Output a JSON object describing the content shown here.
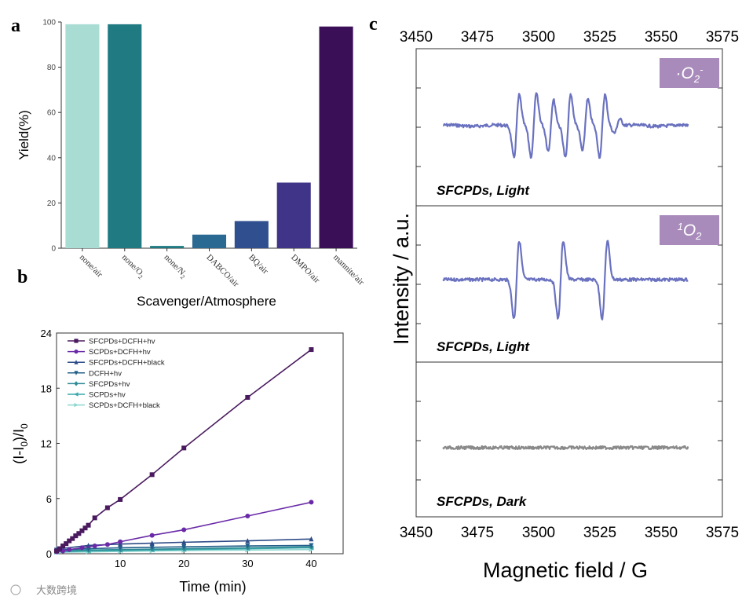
{
  "watermark": "大数跨境",
  "panels": {
    "a": "a",
    "b": "b",
    "c": "c"
  },
  "chart_data": [
    {
      "id": "a",
      "type": "bar",
      "title": "",
      "xlabel": "Scavenger/Atmosphere",
      "ylabel": "Yield(%)",
      "ylim": [
        0,
        100
      ],
      "yticks": [
        0,
        20,
        40,
        60,
        80,
        100
      ],
      "categories": [
        "none/air",
        "none/O2",
        "none/N2",
        "DABCO/air",
        "BQ/air",
        "DMPO/air",
        "mannite/air"
      ],
      "category_labels": [
        {
          "main": "none/air",
          "sub": ""
        },
        {
          "main": "none/O",
          "sub": "2"
        },
        {
          "main": "none/N",
          "sub": "2"
        },
        {
          "main": "DABCO/air",
          "sub": ""
        },
        {
          "main": "BQ/air",
          "sub": ""
        },
        {
          "main": "DMPO/air",
          "sub": ""
        },
        {
          "main": "mannite/air",
          "sub": ""
        }
      ],
      "values": [
        99,
        99,
        1,
        6,
        12,
        29,
        98
      ],
      "colors": [
        "#a9dcd3",
        "#1f7a82",
        "#1f7a82",
        "#2a6a92",
        "#2f4f8e",
        "#3f3488",
        "#3a0f58"
      ]
    },
    {
      "id": "b",
      "type": "line",
      "xlabel": "Time (min)",
      "ylabel_main": "(I-I",
      "ylabel_sub": "0",
      "ylabel_mid": ")/I",
      "ylabel_sub2": "0",
      "xlim": [
        0,
        45
      ],
      "ylim": [
        0,
        24
      ],
      "xticks": [
        10,
        20,
        30,
        40
      ],
      "yticks": [
        0,
        6,
        12,
        18,
        24
      ],
      "legend_position": "top-left",
      "series": [
        {
          "name": "SFCPDs+DCFH+hv",
          "color": "#4a1a5e",
          "marker": "square",
          "x": [
            0,
            0.5,
            1,
            1.5,
            2,
            2.5,
            3,
            3.5,
            4,
            4.5,
            5,
            6,
            8,
            10,
            15,
            20,
            30,
            40
          ],
          "y": [
            0.3,
            0.55,
            0.85,
            1.1,
            1.4,
            1.65,
            1.95,
            2.2,
            2.5,
            2.8,
            3.1,
            3.9,
            5.0,
            5.9,
            8.6,
            11.5,
            17.0,
            22.2
          ]
        },
        {
          "name": "SCPDs+DCFH+hv",
          "color": "#6a2aa8",
          "marker": "circle",
          "x": [
            0,
            1,
            2,
            4,
            6,
            8,
            10,
            15,
            20,
            30,
            40
          ],
          "y": [
            0.2,
            0.3,
            0.45,
            0.65,
            0.85,
            1.0,
            1.3,
            2.0,
            2.6,
            4.1,
            5.6
          ]
        },
        {
          "name": "SFCPDs+DCFH+black",
          "color": "#2d4c87",
          "marker": "triangle",
          "x": [
            0,
            5,
            10,
            15,
            20,
            30,
            40
          ],
          "y": [
            0.5,
            0.9,
            1.05,
            1.15,
            1.25,
            1.4,
            1.6
          ]
        },
        {
          "name": "DCFH+hv",
          "color": "#24608a",
          "marker": "triangle-down",
          "x": [
            0,
            5,
            10,
            15,
            20,
            30,
            40
          ],
          "y": [
            0.4,
            0.55,
            0.65,
            0.7,
            0.75,
            0.85,
            0.9
          ]
        },
        {
          "name": "SFCPDs+hv",
          "color": "#2e8a96",
          "marker": "diamond",
          "x": [
            0,
            5,
            10,
            15,
            20,
            30,
            40
          ],
          "y": [
            0.3,
            0.4,
            0.45,
            0.5,
            0.55,
            0.65,
            0.75
          ]
        },
        {
          "name": "SCPDs+hv",
          "color": "#3aa8ac",
          "marker": "triangle-left",
          "x": [
            0,
            5,
            10,
            15,
            20,
            30,
            40
          ],
          "y": [
            0.2,
            0.3,
            0.35,
            0.4,
            0.45,
            0.55,
            0.65
          ]
        },
        {
          "name": "SCPDs+DCFH+black",
          "color": "#8fd6cf",
          "marker": "triangle-right",
          "x": [
            0,
            5,
            10,
            15,
            20,
            30,
            40
          ],
          "y": [
            0.15,
            0.2,
            0.25,
            0.3,
            0.35,
            0.4,
            0.45
          ]
        }
      ]
    },
    {
      "id": "c",
      "type": "line",
      "xlabel": "Magnetic field / G",
      "ylabel": "Intensity / a.u.",
      "xlim": [
        3450,
        3575
      ],
      "xticks": [
        3450,
        3475,
        3500,
        3525,
        3550,
        3575
      ],
      "data_range": [
        3461,
        3561
      ],
      "subplots": [
        {
          "label": "SFCPDs, Light",
          "badge": "·O₂⁻",
          "badge_main": "·O",
          "badge_sub": "2",
          "badge_sup": "-",
          "color": "#6a72c0",
          "peaks": [
            {
              "x": 3491,
              "amp": 55
            },
            {
              "x": 3498,
              "amp": 55
            },
            {
              "x": 3505,
              "amp": 45
            },
            {
              "x": 3512,
              "amp": 55
            },
            {
              "x": 3519,
              "amp": 45
            },
            {
              "x": 3526,
              "amp": 55
            },
            {
              "x": 3532,
              "amp": 12
            }
          ]
        },
        {
          "label": "SFCPDs, Light",
          "badge": "¹O₂",
          "badge_main": "O",
          "badge_sub": "2",
          "badge_sup": "1",
          "color": "#6a72c0",
          "peaks": [
            {
              "x": 3491,
              "amp": 68
            },
            {
              "x": 3509,
              "amp": 68
            },
            {
              "x": 3527,
              "amp": 68
            }
          ]
        },
        {
          "label": "SFCPDs, Dark",
          "badge": "",
          "color": "#8a8a8a",
          "peaks": []
        }
      ]
    }
  ]
}
